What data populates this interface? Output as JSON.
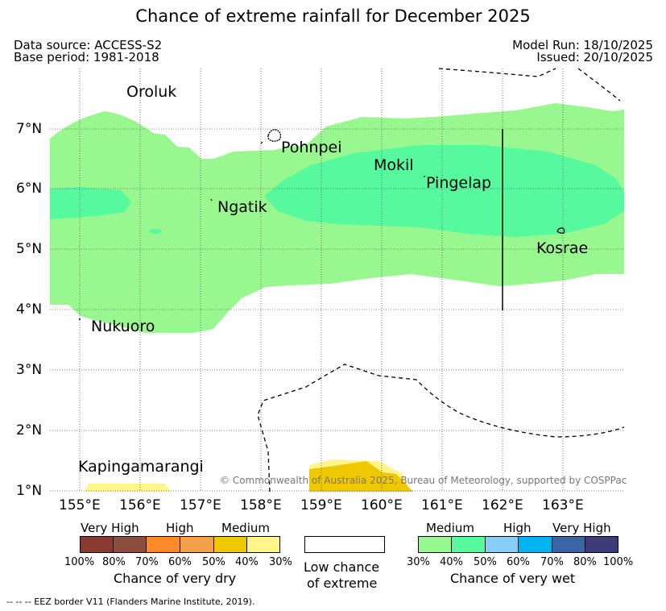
{
  "title": "Chance of extreme rainfall for December 2025",
  "header": {
    "data_source": "Data source: ACCESS-S2",
    "base_period": "Base period: 1981-2018",
    "model_run": "Model Run: 18/10/2025",
    "issued": "Issued: 20/10/2025"
  },
  "map": {
    "x_ticks": [
      "155°E",
      "156°E",
      "157°E",
      "158°E",
      "159°E",
      "160°E",
      "161°E",
      "162°E",
      "163°E"
    ],
    "y_ticks": [
      "7°N",
      "6°N",
      "5°N",
      "4°N",
      "3°N",
      "2°N",
      "1°N"
    ],
    "places": {
      "oroluk": "Oroluk",
      "pohnpei": "Pohnpei",
      "mokil": "Mokil",
      "pingelap": "Pingelap",
      "ngatik": "Ngatik",
      "kosrae": "Kosrae",
      "nukuoro": "Nukuoro",
      "kapingamarangi": "Kapingamarangi"
    },
    "copyright": "© Commonwealth of Australia 2025, Bureau of Meteorology, supported by COSPPac"
  },
  "legend": {
    "dry": {
      "categories": [
        "Very High",
        "High",
        "Medium"
      ],
      "colors": [
        "#8b3a2f",
        "#8c4d3c",
        "#ff8a2a",
        "#f2a04a",
        "#f0c800",
        "#fff58a"
      ],
      "ticks": [
        "100%",
        "80%",
        "70%",
        "60%",
        "50%",
        "40%",
        "30%"
      ],
      "title": "Chance of very dry"
    },
    "low": {
      "line1": "Low chance",
      "line2": "of extreme"
    },
    "wet": {
      "categories": [
        "Medium",
        "High",
        "Very High"
      ],
      "colors": [
        "#99f78f",
        "#57f99f",
        "#87cdf8",
        "#00b4f0",
        "#3a66a6",
        "#3c3c7a"
      ],
      "ticks": [
        "30%",
        "40%",
        "50%",
        "60%",
        "70%",
        "80%",
        "100%"
      ],
      "title": "Chance of very wet"
    }
  },
  "footnote": "--  --  -- EEZ border V11 (Flanders Marine Institute, 2019)."
}
